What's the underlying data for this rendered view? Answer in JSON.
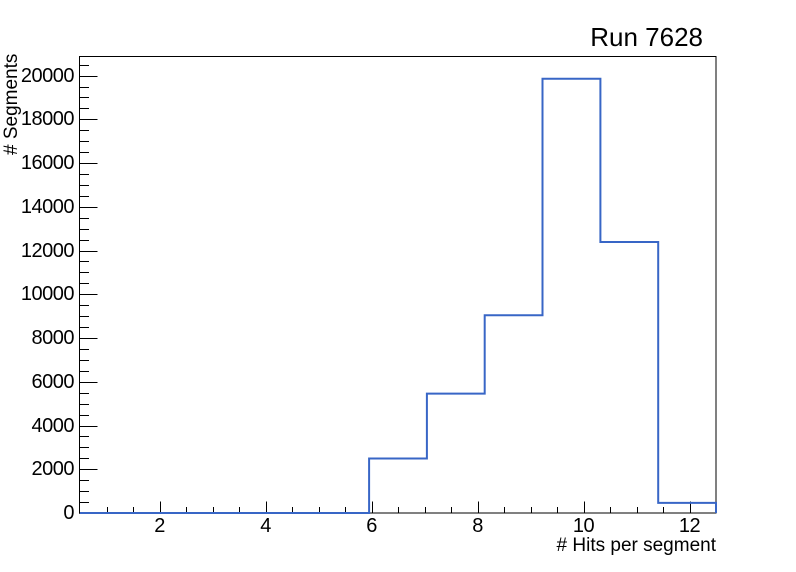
{
  "title": "Run 7628",
  "colors": {
    "background": "#ffffff",
    "line": "#3866C6",
    "axis": "#000000",
    "text": "#000000"
  },
  "chart_data": {
    "type": "bar",
    "style": "step-histogram-outline",
    "title": "Run 7628",
    "xlabel": "# Hits per segment",
    "ylabel": "# Segments",
    "xlim": [
      0.5,
      12.5
    ],
    "ylim": [
      0,
      20850
    ],
    "n_bins": 11,
    "bin_edges": [
      0.5,
      1.5909,
      2.6818,
      3.7727,
      4.8636,
      5.9545,
      7.0455,
      8.1364,
      9.2273,
      10.3182,
      11.4091,
      12.5
    ],
    "values": [
      0,
      0,
      0,
      0,
      0,
      2490,
      5460,
      9040,
      19860,
      12390,
      460
    ],
    "x_major_ticks": [
      2,
      4,
      6,
      8,
      10,
      12
    ],
    "x_tick_labels": [
      "2",
      "4",
      "6",
      "8",
      "10",
      "12"
    ],
    "x_minor_step": 0.5,
    "y_major_ticks": [
      0,
      2000,
      4000,
      6000,
      8000,
      10000,
      12000,
      14000,
      16000,
      18000,
      20000
    ],
    "y_tick_labels": [
      "0",
      "2000",
      "4000",
      "6000",
      "8000",
      "10000",
      "12000",
      "14000",
      "16000",
      "18000",
      "20000"
    ],
    "y_minor_step": 500,
    "grid": false,
    "legend": null
  }
}
